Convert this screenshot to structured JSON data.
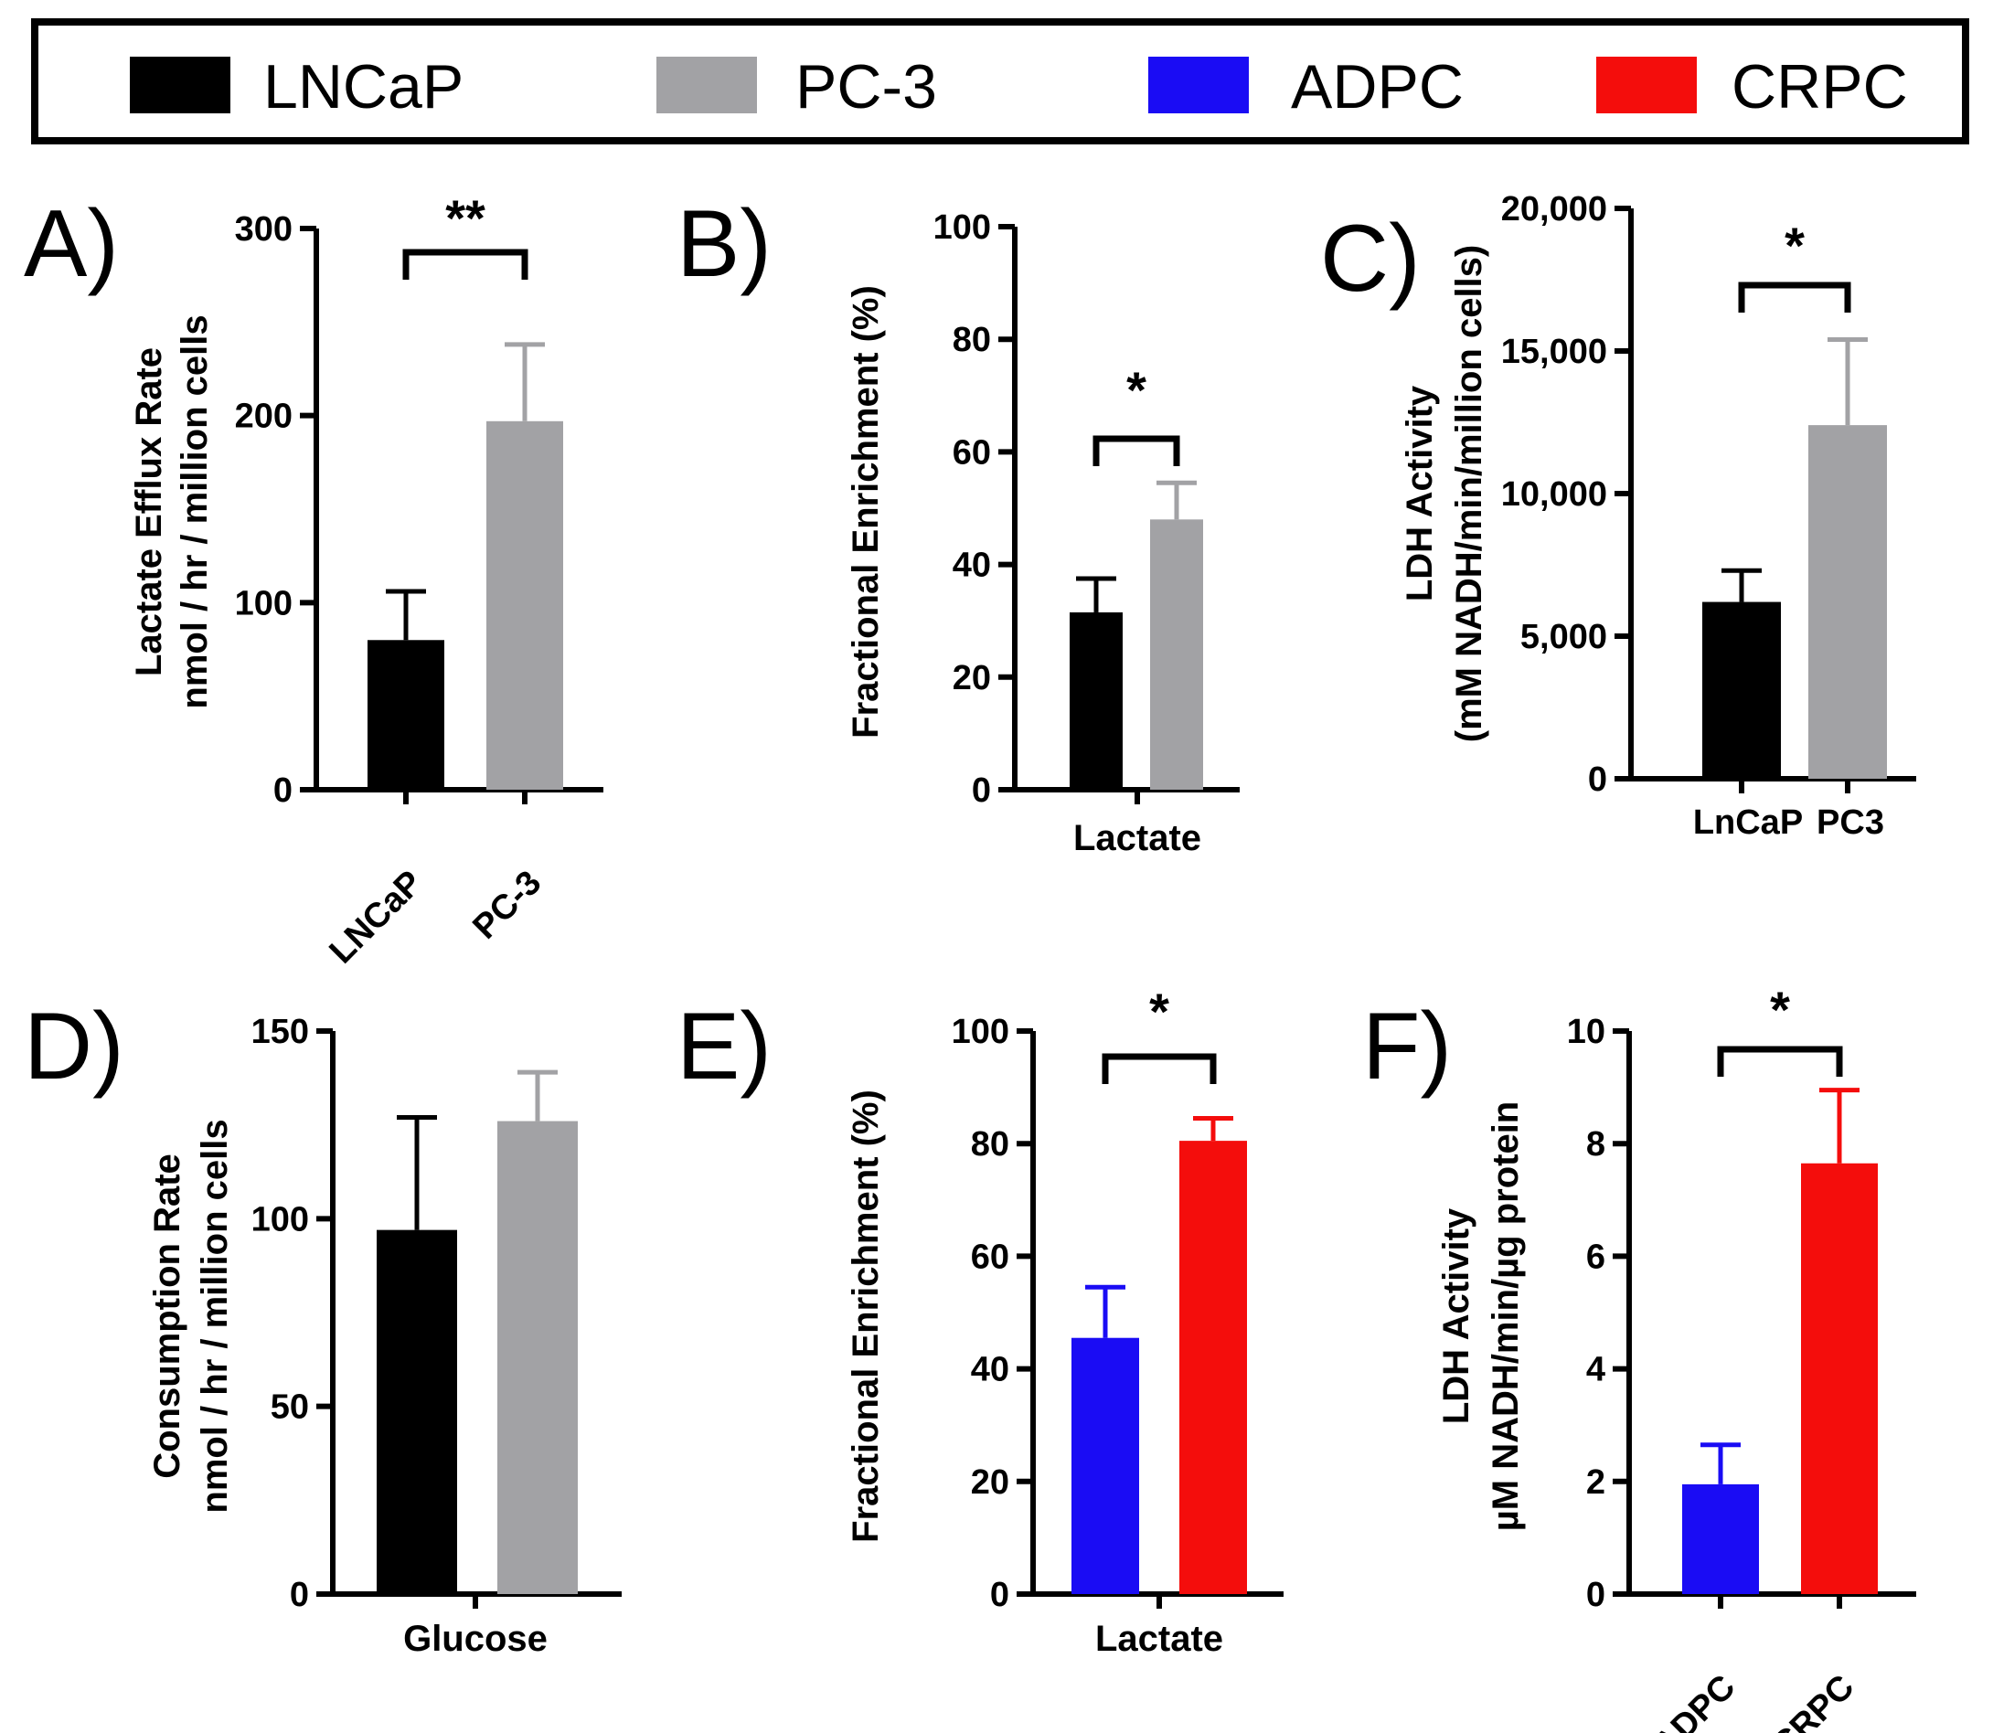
{
  "colors": {
    "LNCaP": "#000000",
    "PC-3": "#a2a2a5",
    "ADPC": "#1a0cf4",
    "CRPC": "#f40d0c"
  },
  "legend": [
    {
      "label": "LNCaP",
      "color": "#000000"
    },
    {
      "label": "PC-3",
      "color": "#a2a2a5"
    },
    {
      "label": "ADPC",
      "color": "#1a0cf4"
    },
    {
      "label": "CRPC",
      "color": "#f40d0c"
    }
  ],
  "chart_data": [
    {
      "panel": "A)",
      "type": "bar",
      "ylim": [
        0,
        300
      ],
      "yticks": [
        "0",
        "100",
        "200",
        "300"
      ],
      "ytick_values": [
        0,
        100,
        200,
        300
      ],
      "ylabel": [
        "Lactate Efflux Rate",
        "nmol / hr / million cells"
      ],
      "xlabel": "",
      "xtick_labels": [
        "LNCaP",
        "PC-3"
      ],
      "xtick_rotated": true,
      "bars": [
        {
          "label": "LNCaP",
          "value": 80,
          "error": 26,
          "color": "#000000"
        },
        {
          "label": "PC-3",
          "value": 197,
          "error": 41,
          "color": "#a2a2a5"
        }
      ],
      "significance": "**"
    },
    {
      "panel": "B)",
      "type": "bar",
      "ylim": [
        0,
        100
      ],
      "yticks": [
        "0",
        "20",
        "40",
        "60",
        "80",
        "100"
      ],
      "ytick_values": [
        0,
        20,
        40,
        60,
        80,
        100
      ],
      "ylabel": [
        "Fractional Enrichment (%)"
      ],
      "xlabel": "Lactate",
      "xtick_labels": [],
      "xtick_rotated": false,
      "bars": [
        {
          "label": "LNCaP",
          "value": 31.5,
          "error": 6,
          "color": "#000000"
        },
        {
          "label": "PC-3",
          "value": 48,
          "error": 6.5,
          "color": "#a2a2a5"
        }
      ],
      "significance": "*"
    },
    {
      "panel": "C)",
      "type": "bar",
      "ylim": [
        0,
        20000
      ],
      "yticks": [
        "0",
        "5,000",
        "10,000",
        "15,000",
        "20,000"
      ],
      "ytick_values": [
        0,
        5000,
        10000,
        15000,
        20000
      ],
      "ylabel": [
        "LDH Activity",
        "(mM NADH/min/million cells)"
      ],
      "xlabel": "",
      "xtick_labels": [
        "LnCaP",
        "PC3"
      ],
      "xtick_rotated": false,
      "bars": [
        {
          "label": "LnCaP",
          "value": 6200,
          "error": 1100,
          "color": "#000000"
        },
        {
          "label": "PC3",
          "value": 12400,
          "error": 3000,
          "color": "#a2a2a5"
        }
      ],
      "significance": "*"
    },
    {
      "panel": "D)",
      "type": "bar",
      "ylim": [
        0,
        150
      ],
      "yticks": [
        "0",
        "50",
        "100",
        "150"
      ],
      "ytick_values": [
        0,
        50,
        100,
        150
      ],
      "ylabel": [
        "Consumption Rate",
        "nmol / hr / million cells"
      ],
      "xlabel": "Glucose",
      "xtick_labels": [],
      "xtick_rotated": false,
      "bars": [
        {
          "label": "LNCaP",
          "value": 97,
          "error": 30,
          "color": "#000000"
        },
        {
          "label": "PC-3",
          "value": 126,
          "error": 13,
          "color": "#a2a2a5"
        }
      ],
      "significance": ""
    },
    {
      "panel": "E)",
      "type": "bar",
      "ylim": [
        0,
        100
      ],
      "yticks": [
        "0",
        "20",
        "40",
        "60",
        "80",
        "100"
      ],
      "ytick_values": [
        0,
        20,
        40,
        60,
        80,
        100
      ],
      "ylabel": [
        "Fractional Enrichment (%)"
      ],
      "xlabel": "Lactate",
      "xtick_labels": [],
      "xtick_rotated": false,
      "bars": [
        {
          "label": "ADPC",
          "value": 45.5,
          "error": 9,
          "color": "#1a0cf4"
        },
        {
          "label": "CRPC",
          "value": 80.5,
          "error": 4,
          "color": "#f40d0c"
        }
      ],
      "significance": "*"
    },
    {
      "panel": "F)",
      "type": "bar",
      "ylim": [
        0,
        10
      ],
      "yticks": [
        "0",
        "2",
        "4",
        "6",
        "8",
        "10"
      ],
      "ytick_values": [
        0,
        2,
        4,
        6,
        8,
        10
      ],
      "ylabel": [
        "LDH Activity",
        "µM NADH/min/µg protein"
      ],
      "xlabel": "",
      "xtick_labels": [
        "ADPC",
        "CRPC"
      ],
      "xtick_rotated": true,
      "bars": [
        {
          "label": "ADPC",
          "value": 1.95,
          "error": 0.7,
          "color": "#1a0cf4"
        },
        {
          "label": "CRPC",
          "value": 7.65,
          "error": 1.3,
          "color": "#f40d0c"
        }
      ],
      "significance": "*"
    }
  ]
}
